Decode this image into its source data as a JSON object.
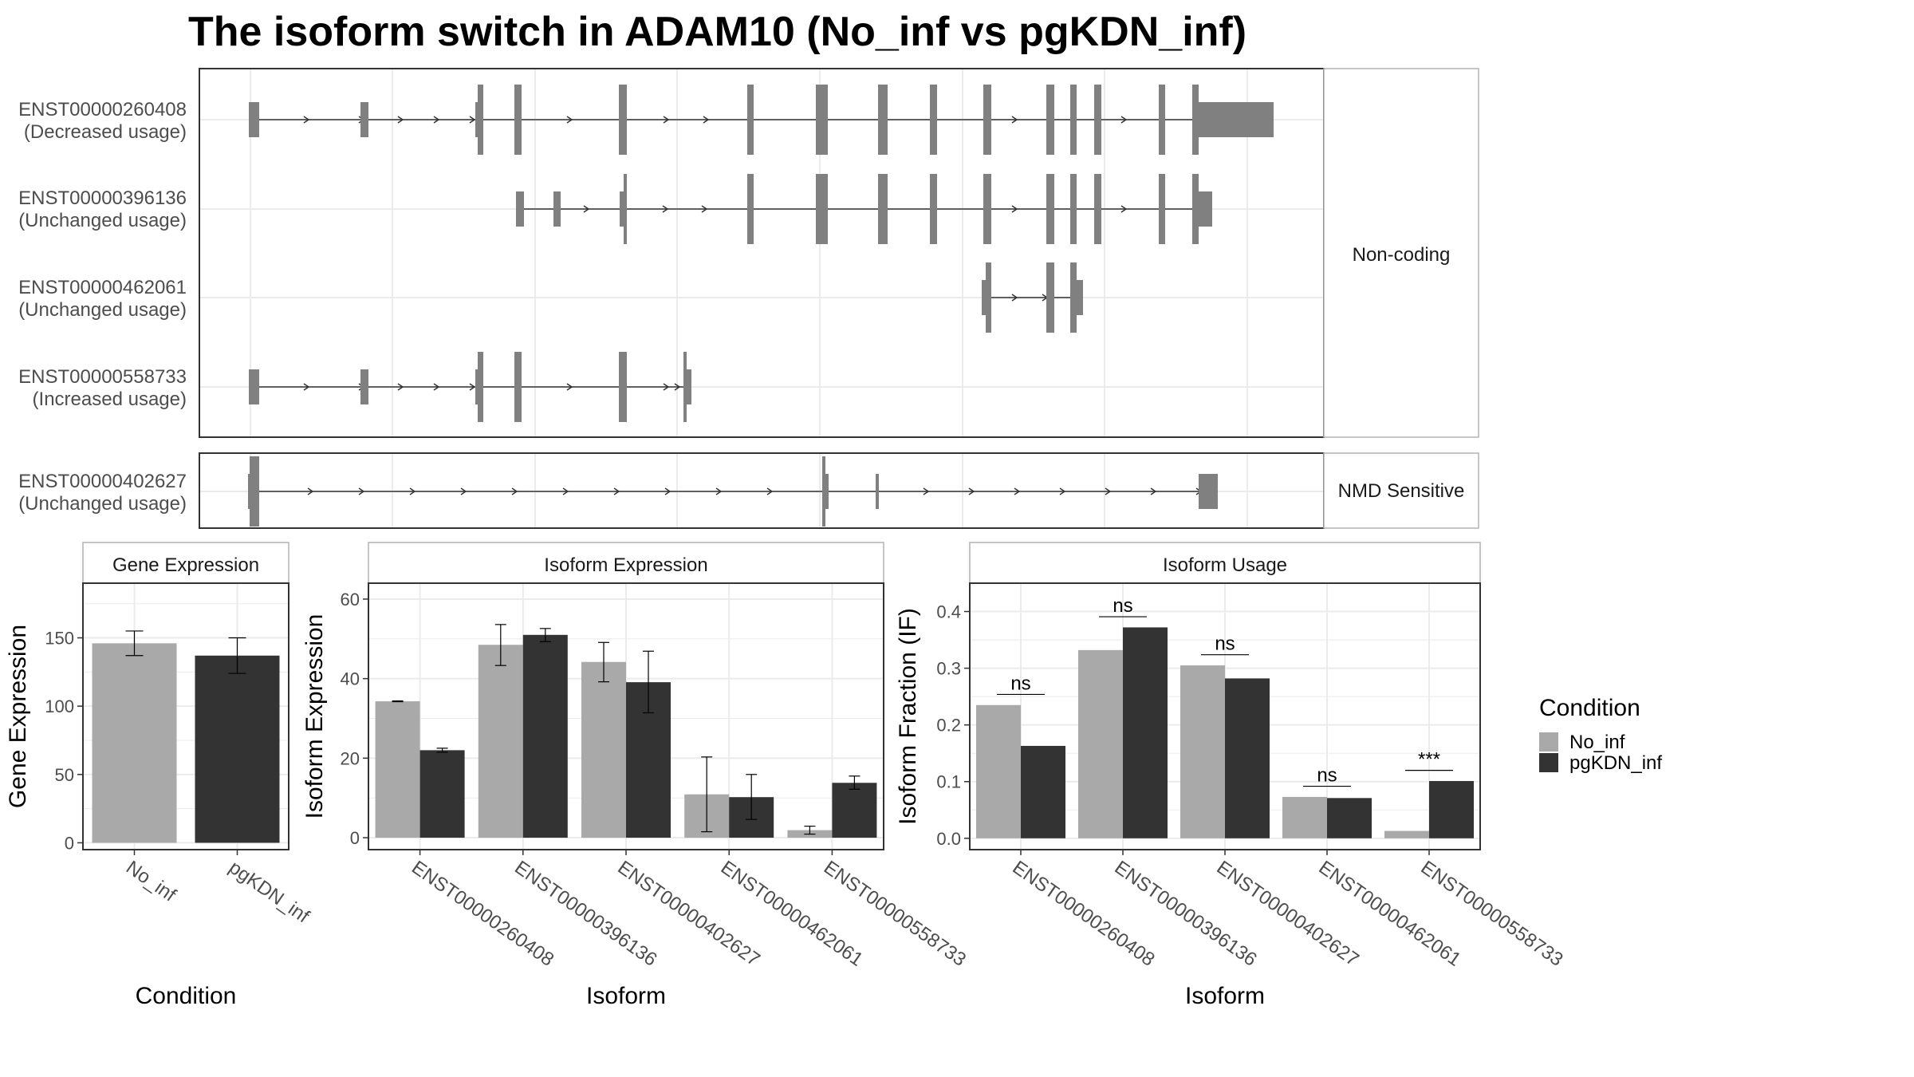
{
  "title": "The isoform switch in ADAM10 (No_inf vs pgKDN_inf)",
  "colors": {
    "no_inf": "#a9a9a9",
    "pgkdn_inf": "#333333",
    "exon": "#808080",
    "grid": "#ebebeb",
    "frame": "#333333",
    "strip_border": "#b3b3b3"
  },
  "structure_panel": {
    "facets": [
      {
        "label": "Non-coding",
        "tracks": [
          {
            "id": "ENST00000260408",
            "usage": "(Decreased usage)"
          },
          {
            "id": "ENST00000396136",
            "usage": "(Unchanged usage)"
          },
          {
            "id": "ENST00000462061",
            "usage": "(Unchanged usage)"
          },
          {
            "id": "ENST00000558733",
            "usage": "(Increased usage)"
          }
        ]
      },
      {
        "label": "NMD Sensitive",
        "tracks": [
          {
            "id": "ENST00000402627",
            "usage": "(Unchanged usage)"
          }
        ]
      }
    ]
  },
  "legend": {
    "title": "Condition",
    "items": [
      "No_inf",
      "pgKDN_inf"
    ]
  },
  "chart_data": [
    {
      "type": "bar",
      "title": "Gene Expression",
      "xlabel": "Condition",
      "ylabel": "Gene Expression",
      "ylim": [
        -5,
        190
      ],
      "yticks": [
        0,
        50,
        100,
        150
      ],
      "categories": [
        "No_inf",
        "pgKDN_inf"
      ],
      "values": [
        146,
        137
      ],
      "error": [
        [
          137,
          155
        ],
        [
          124,
          150
        ]
      ],
      "colors": [
        "#a9a9a9",
        "#333333"
      ],
      "grid": true
    },
    {
      "type": "bar",
      "title": "Isoform Expression",
      "xlabel": "Isoform",
      "ylabel": "Isoform Expression",
      "ylim": [
        -3,
        64
      ],
      "yticks": [
        0,
        20,
        40,
        60
      ],
      "categories": [
        "ENST00000260408",
        "ENST00000396136",
        "ENST00000402627",
        "ENST00000462061",
        "ENST00000558733"
      ],
      "series": [
        {
          "name": "No_inf",
          "values": [
            34.3,
            48.5,
            44.2,
            10.9,
            1.9
          ],
          "error": [
            [
              34.2,
              34.4
            ],
            [
              43.3,
              53.6
            ],
            [
              39.2,
              49.1
            ],
            [
              1.5,
              20.3
            ],
            [
              0.9,
              2.9
            ]
          ]
        },
        {
          "name": "pgKDN_inf",
          "values": [
            22.0,
            51.0,
            39.1,
            10.2,
            13.8
          ],
          "error": [
            [
              21.5,
              22.5
            ],
            [
              49.3,
              52.6
            ],
            [
              31.4,
              46.9
            ],
            [
              4.6,
              15.9
            ],
            [
              12.2,
              15.5
            ]
          ]
        }
      ],
      "grid": true
    },
    {
      "type": "bar",
      "title": "Isoform Usage",
      "xlabel": "Isoform",
      "ylabel": "Isoform Fraction (IF)",
      "ylim": [
        -0.02,
        0.45
      ],
      "yticks": [
        0.0,
        0.1,
        0.2,
        0.3,
        0.4
      ],
      "categories": [
        "ENST00000260408",
        "ENST00000396136",
        "ENST00000402627",
        "ENST00000462061",
        "ENST00000558733"
      ],
      "series": [
        {
          "name": "No_inf",
          "values": [
            0.235,
            0.332,
            0.305,
            0.073,
            0.013
          ]
        },
        {
          "name": "pgKDN_inf",
          "values": [
            0.163,
            0.372,
            0.282,
            0.071,
            0.101
          ]
        }
      ],
      "significance": [
        "ns",
        "ns",
        "ns",
        "ns",
        "***"
      ],
      "grid": true
    }
  ]
}
